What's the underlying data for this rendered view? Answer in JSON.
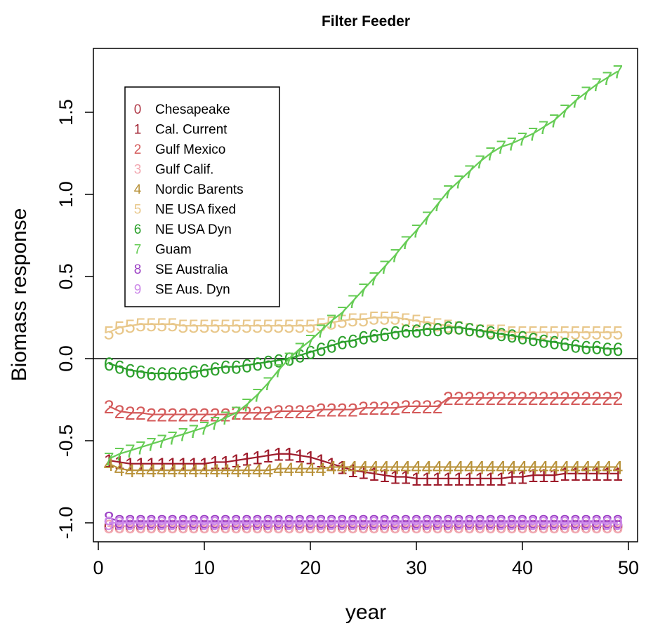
{
  "chart_data": {
    "type": "line",
    "title": "Filter Feeder",
    "xlabel": "year",
    "ylabel": "Biomass response",
    "xlim": [
      0,
      50
    ],
    "ylim": [
      -1.1,
      1.85
    ],
    "xticks": [
      0,
      10,
      20,
      30,
      40,
      50
    ],
    "yticks": [
      -1.0,
      -0.5,
      0.0,
      0.5,
      1.0,
      1.5
    ],
    "ytick_labels": [
      "-1.0",
      "-0.5",
      "0.0",
      "0.5",
      "1.0",
      "1.5"
    ],
    "hline": 0,
    "legend_position": "top-left",
    "x": [
      1,
      2,
      3,
      4,
      5,
      6,
      7,
      8,
      9,
      10,
      11,
      12,
      13,
      14,
      15,
      16,
      17,
      18,
      19,
      20,
      21,
      22,
      23,
      24,
      25,
      26,
      27,
      28,
      29,
      30,
      31,
      32,
      33,
      34,
      35,
      36,
      37,
      38,
      39,
      40,
      41,
      42,
      43,
      44,
      45,
      46,
      47,
      48,
      49
    ],
    "series": [
      {
        "symbol": "0",
        "name": "Chesapeake",
        "color": "#b03a48",
        "values": [
          -1.02,
          -1.02,
          -1.02,
          -1.02,
          -1.02,
          -1.02,
          -1.02,
          -1.02,
          -1.02,
          -1.02,
          -1.02,
          -1.02,
          -1.02,
          -1.02,
          -1.02,
          -1.02,
          -1.02,
          -1.02,
          -1.02,
          -1.02,
          -1.02,
          -1.02,
          -1.02,
          -1.02,
          -1.02,
          -1.02,
          -1.02,
          -1.02,
          -1.02,
          -1.02,
          -1.02,
          -1.02,
          -1.02,
          -1.02,
          -1.02,
          -1.02,
          -1.02,
          -1.02,
          -1.02,
          -1.02,
          -1.02,
          -1.02,
          -1.02,
          -1.02,
          -1.02,
          -1.02,
          -1.02,
          -1.02,
          -1.02
        ]
      },
      {
        "symbol": "1",
        "name": "Cal. Current",
        "color": "#9e1b2b",
        "values": [
          -0.62,
          -0.63,
          -0.64,
          -0.64,
          -0.64,
          -0.64,
          -0.64,
          -0.64,
          -0.64,
          -0.64,
          -0.63,
          -0.63,
          -0.62,
          -0.61,
          -0.6,
          -0.59,
          -0.58,
          -0.58,
          -0.59,
          -0.6,
          -0.62,
          -0.64,
          -0.66,
          -0.68,
          -0.69,
          -0.7,
          -0.71,
          -0.72,
          -0.72,
          -0.73,
          -0.73,
          -0.73,
          -0.73,
          -0.73,
          -0.73,
          -0.73,
          -0.73,
          -0.73,
          -0.72,
          -0.72,
          -0.71,
          -0.71,
          -0.71,
          -0.7,
          -0.7,
          -0.7,
          -0.7,
          -0.7,
          -0.7
        ]
      },
      {
        "symbol": "2",
        "name": "Gulf Mexico",
        "color": "#d45a5a",
        "values": [
          -0.29,
          -0.32,
          -0.33,
          -0.33,
          -0.34,
          -0.34,
          -0.34,
          -0.34,
          -0.34,
          -0.34,
          -0.34,
          -0.34,
          -0.33,
          -0.33,
          -0.33,
          -0.33,
          -0.32,
          -0.32,
          -0.32,
          -0.32,
          -0.31,
          -0.31,
          -0.31,
          -0.31,
          -0.3,
          -0.3,
          -0.3,
          -0.3,
          -0.29,
          -0.29,
          -0.29,
          -0.29,
          -0.24,
          -0.24,
          -0.24,
          -0.24,
          -0.24,
          -0.24,
          -0.24,
          -0.24,
          -0.24,
          -0.24,
          -0.24,
          -0.24,
          -0.24,
          -0.24,
          -0.24,
          -0.24,
          -0.24
        ]
      },
      {
        "symbol": "3",
        "name": "Gulf Calif.",
        "color": "#f2a7b0",
        "values": [
          -1.02,
          -1.02,
          -1.02,
          -1.02,
          -1.02,
          -1.02,
          -1.02,
          -1.02,
          -1.02,
          -1.02,
          -1.02,
          -1.02,
          -1.02,
          -1.02,
          -1.02,
          -1.02,
          -1.02,
          -1.02,
          -1.02,
          -1.02,
          -1.02,
          -1.02,
          -1.02,
          -1.02,
          -1.02,
          -1.02,
          -1.02,
          -1.02,
          -1.02,
          -1.02,
          -1.02,
          -1.02,
          -1.02,
          -1.02,
          -1.02,
          -1.02,
          -1.02,
          -1.02,
          -1.02,
          -1.02,
          -1.02,
          -1.02,
          -1.02,
          -1.02,
          -1.02,
          -1.02,
          -1.02,
          -1.02,
          -1.02
        ]
      },
      {
        "symbol": "4",
        "name": "Nordic Barents",
        "color": "#b8923a",
        "values": [
          -0.64,
          -0.67,
          -0.68,
          -0.68,
          -0.68,
          -0.68,
          -0.68,
          -0.68,
          -0.68,
          -0.68,
          -0.68,
          -0.68,
          -0.68,
          -0.68,
          -0.68,
          -0.68,
          -0.67,
          -0.67,
          -0.67,
          -0.67,
          -0.67,
          -0.66,
          -0.66,
          -0.66,
          -0.66,
          -0.66,
          -0.66,
          -0.66,
          -0.66,
          -0.66,
          -0.66,
          -0.66,
          -0.66,
          -0.66,
          -0.66,
          -0.66,
          -0.66,
          -0.66,
          -0.66,
          -0.66,
          -0.66,
          -0.66,
          -0.66,
          -0.66,
          -0.66,
          -0.66,
          -0.66,
          -0.66,
          -0.66
        ]
      },
      {
        "symbol": "5",
        "name": "NE USA fixed",
        "color": "#e8c78a",
        "values": [
          0.16,
          0.19,
          0.2,
          0.21,
          0.21,
          0.21,
          0.21,
          0.2,
          0.2,
          0.2,
          0.2,
          0.2,
          0.2,
          0.2,
          0.2,
          0.2,
          0.2,
          0.2,
          0.2,
          0.2,
          0.21,
          0.22,
          0.23,
          0.24,
          0.24,
          0.25,
          0.25,
          0.25,
          0.24,
          0.23,
          0.22,
          0.21,
          0.2,
          0.19,
          0.18,
          0.17,
          0.17,
          0.17,
          0.16,
          0.16,
          0.16,
          0.16,
          0.16,
          0.16,
          0.16,
          0.16,
          0.16,
          0.16,
          0.16
        ]
      },
      {
        "symbol": "6",
        "name": "NE USA Dyn",
        "color": "#2ca02c",
        "values": [
          -0.03,
          -0.05,
          -0.07,
          -0.08,
          -0.09,
          -0.09,
          -0.09,
          -0.09,
          -0.08,
          -0.07,
          -0.06,
          -0.05,
          -0.05,
          -0.04,
          -0.03,
          -0.02,
          -0.01,
          0.0,
          0.02,
          0.04,
          0.06,
          0.08,
          0.1,
          0.11,
          0.13,
          0.14,
          0.15,
          0.16,
          0.17,
          0.17,
          0.18,
          0.18,
          0.19,
          0.19,
          0.18,
          0.17,
          0.16,
          0.15,
          0.14,
          0.13,
          0.12,
          0.11,
          0.1,
          0.09,
          0.08,
          0.07,
          0.07,
          0.06,
          0.06
        ]
      },
      {
        "symbol": "7",
        "name": "Guam",
        "color": "#66cc55",
        "values": [
          -0.61,
          -0.58,
          -0.56,
          -0.54,
          -0.52,
          -0.5,
          -0.48,
          -0.46,
          -0.44,
          -0.42,
          -0.39,
          -0.36,
          -0.33,
          -0.28,
          -0.22,
          -0.15,
          -0.07,
          0.0,
          0.06,
          0.11,
          0.17,
          0.23,
          0.28,
          0.35,
          0.42,
          0.49,
          0.56,
          0.63,
          0.71,
          0.78,
          0.86,
          0.94,
          1.02,
          1.08,
          1.14,
          1.2,
          1.25,
          1.29,
          1.31,
          1.34,
          1.37,
          1.41,
          1.45,
          1.51,
          1.57,
          1.62,
          1.67,
          1.71,
          1.75
        ]
      },
      {
        "symbol": "8",
        "name": "SE Australia",
        "color": "#9b3fc4",
        "values": [
          -0.97,
          -0.99,
          -0.99,
          -0.99,
          -0.99,
          -0.99,
          -0.99,
          -0.99,
          -0.99,
          -0.99,
          -0.99,
          -0.99,
          -0.99,
          -0.99,
          -0.99,
          -0.99,
          -0.99,
          -0.99,
          -0.99,
          -0.99,
          -0.99,
          -0.99,
          -0.99,
          -0.99,
          -0.99,
          -0.99,
          -0.99,
          -0.99,
          -0.99,
          -0.99,
          -0.99,
          -0.99,
          -0.99,
          -0.99,
          -0.99,
          -0.99,
          -0.99,
          -0.99,
          -0.99,
          -0.99,
          -0.99,
          -0.99,
          -0.99,
          -0.99,
          -0.99,
          -0.99,
          -0.99,
          -0.99,
          -0.99
        ]
      },
      {
        "symbol": "9",
        "name": "SE Aus. Dyn",
        "color": "#cc88e8",
        "values": [
          -1.0,
          -1.0,
          -1.0,
          -1.0,
          -1.0,
          -1.0,
          -1.0,
          -1.0,
          -1.0,
          -1.0,
          -1.0,
          -1.0,
          -1.0,
          -1.0,
          -1.0,
          -1.0,
          -1.0,
          -1.0,
          -1.0,
          -1.0,
          -1.0,
          -1.0,
          -1.0,
          -1.0,
          -1.0,
          -1.0,
          -1.0,
          -1.0,
          -1.0,
          -1.0,
          -1.0,
          -1.0,
          -1.0,
          -1.0,
          -1.0,
          -1.0,
          -1.0,
          -1.0,
          -1.0,
          -1.0,
          -1.0,
          -1.0,
          -1.0,
          -1.0,
          -1.0,
          -1.0,
          -1.0,
          -1.0,
          -1.0
        ]
      }
    ]
  }
}
